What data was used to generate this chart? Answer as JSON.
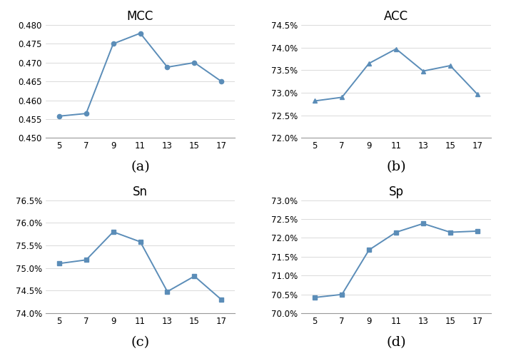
{
  "x": [
    5,
    7,
    9,
    11,
    13,
    15,
    17
  ],
  "mcc": {
    "title": "MCC",
    "label": "(a)",
    "values": [
      0.4558,
      0.4565,
      0.475,
      0.4778,
      0.4688,
      0.47,
      0.465
    ],
    "ylim": [
      0.45,
      0.48
    ],
    "yticks": [
      0.45,
      0.455,
      0.46,
      0.465,
      0.47,
      0.475,
      0.48
    ],
    "ytick_labels": [
      "0.450",
      "0.455",
      "0.460",
      "0.465",
      "0.470",
      "0.475",
      "0.480"
    ],
    "marker": "o"
  },
  "acc": {
    "title": "ACC",
    "label": "(b)",
    "values": [
      72.82,
      72.9,
      73.65,
      73.97,
      73.48,
      73.6,
      72.97
    ],
    "ylim": [
      72.0,
      74.5
    ],
    "yticks": [
      72.0,
      72.5,
      73.0,
      73.5,
      74.0,
      74.5
    ],
    "ytick_labels": [
      "72.0%",
      "72.5%",
      "73.0%",
      "73.5%",
      "74.0%",
      "74.5%"
    ],
    "marker": "^"
  },
  "sn": {
    "title": "Sn",
    "label": "(c)",
    "values": [
      75.1,
      75.18,
      75.8,
      75.58,
      74.48,
      74.82,
      74.3
    ],
    "ylim": [
      74.0,
      76.5
    ],
    "yticks": [
      74.0,
      74.5,
      75.0,
      75.5,
      76.0,
      76.5
    ],
    "ytick_labels": [
      "74.0%",
      "74.5%",
      "75.0%",
      "75.5%",
      "76.0%",
      "76.5%"
    ],
    "marker": "s"
  },
  "sp": {
    "title": "Sp",
    "label": "(d)",
    "values": [
      70.42,
      70.5,
      71.68,
      72.15,
      72.38,
      72.15,
      72.18
    ],
    "ylim": [
      70.0,
      73.0
    ],
    "yticks": [
      70.0,
      70.5,
      71.0,
      71.5,
      72.0,
      72.5,
      73.0
    ],
    "ytick_labels": [
      "70.0%",
      "70.5%",
      "71.0%",
      "71.5%",
      "72.0%",
      "72.5%",
      "73.0%"
    ],
    "marker": "s"
  },
  "line_color": "#5B8DB8",
  "marker_color": "#5B8DB8",
  "title_fontsize": 12,
  "tick_fontsize": 8.5,
  "sub_label_fontsize": 14,
  "spine_color": "#999999"
}
